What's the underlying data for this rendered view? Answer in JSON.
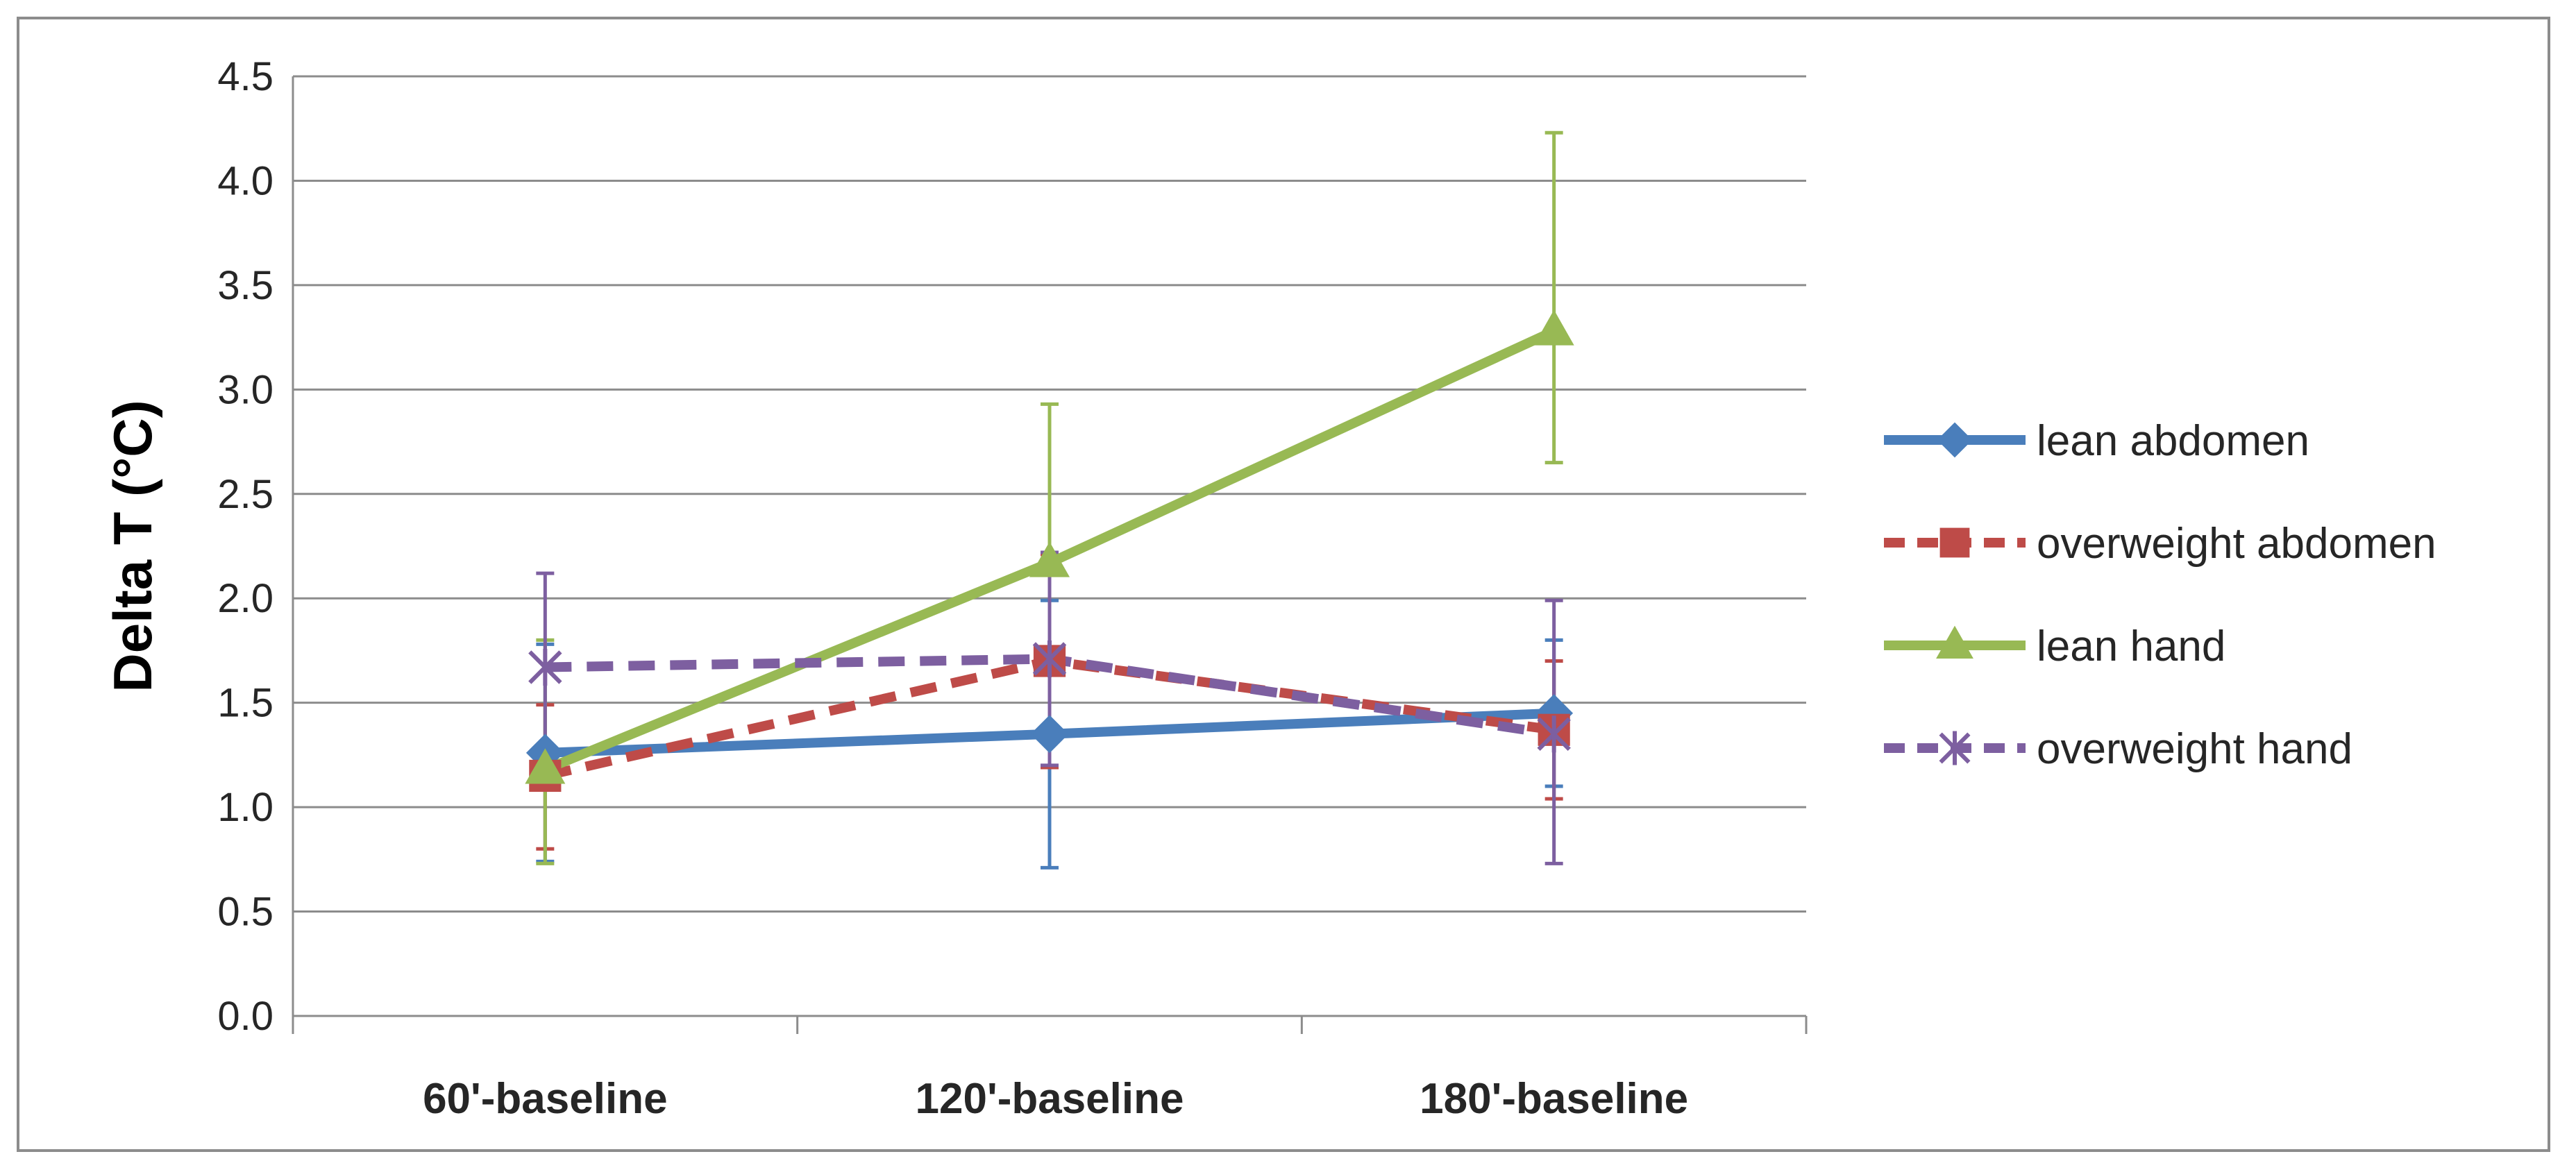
{
  "chart_data": {
    "type": "line",
    "title": "",
    "xlabel": "",
    "ylabel": "Delta T (°C)",
    "categories": [
      "60'-baseline",
      "120'-baseline",
      "180'-baseline"
    ],
    "ylim": [
      0,
      4.5
    ],
    "yticks": [
      "0.0",
      "0.5",
      "1.0",
      "1.5",
      "2.0",
      "2.5",
      "3.0",
      "3.5",
      "4.0",
      "4.5"
    ],
    "grid": true,
    "legend_position": "right",
    "series": [
      {
        "name": "lean abdomen",
        "values": [
          1.26,
          1.35,
          1.45
        ],
        "error_low": [
          0.74,
          0.71,
          1.1
        ],
        "error_high": [
          1.78,
          1.99,
          1.8
        ],
        "color": "#4a7ebb",
        "marker": "diamond",
        "dash": "solid"
      },
      {
        "name": "overweight abdomen",
        "values": [
          1.15,
          1.7,
          1.37
        ],
        "error_low": [
          0.8,
          1.19,
          1.04
        ],
        "error_high": [
          1.49,
          2.21,
          1.7
        ],
        "color": "#be4b48",
        "marker": "square",
        "dash": "dashed"
      },
      {
        "name": "lean hand",
        "values": [
          1.18,
          2.17,
          3.28
        ],
        "error_low": [
          0.73,
          1.39,
          2.65
        ],
        "error_high": [
          1.8,
          2.93,
          4.23
        ],
        "color": "#98b954",
        "marker": "triangle",
        "dash": "solid"
      },
      {
        "name": "overweight hand",
        "values": [
          1.67,
          1.71,
          1.35
        ],
        "error_low": [
          1.22,
          1.2,
          0.73
        ],
        "error_high": [
          2.12,
          2.22,
          1.99
        ],
        "color": "#7d5fa0",
        "marker": "x",
        "dash": "dashed"
      }
    ]
  }
}
